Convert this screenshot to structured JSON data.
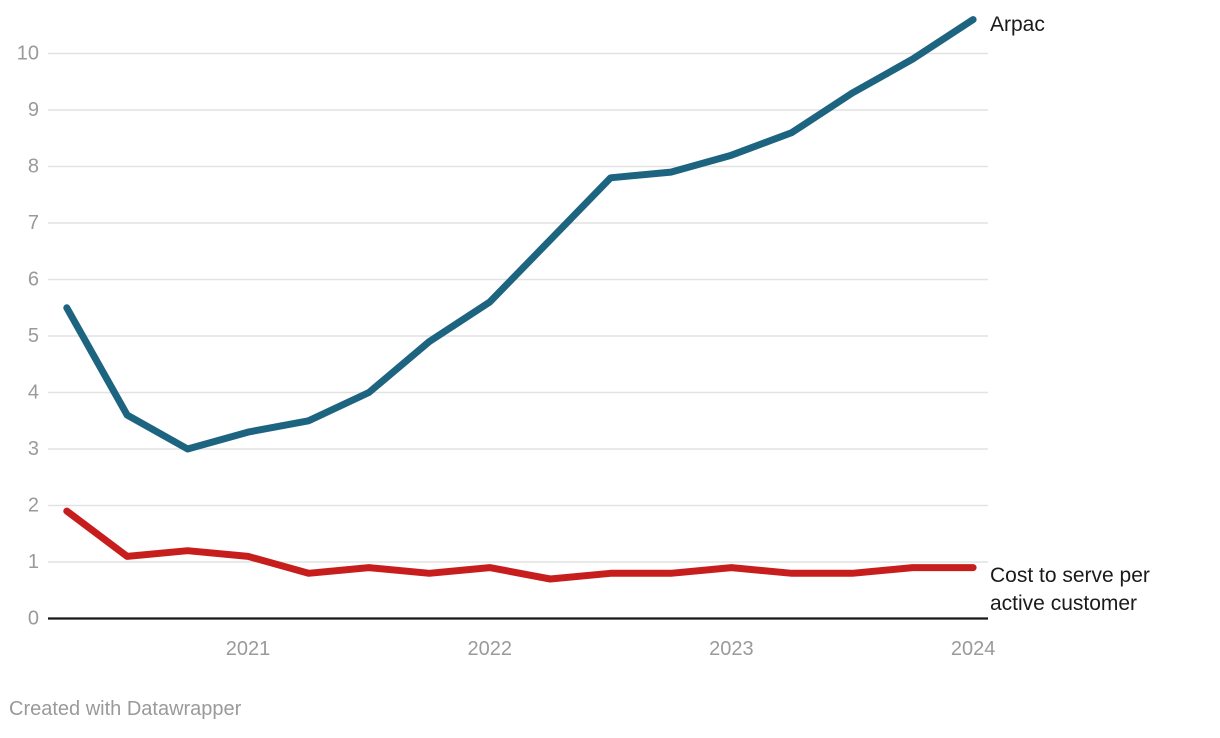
{
  "chart_data": {
    "type": "line",
    "x": [
      "2020-04",
      "2020-07",
      "2020-10",
      "2021-01",
      "2021-04",
      "2021-07",
      "2021-10",
      "2022-01",
      "2022-04",
      "2022-07",
      "2022-10",
      "2023-01",
      "2023-04",
      "2023-07",
      "2023-10",
      "2024-01"
    ],
    "series": [
      {
        "name": "Arpac",
        "color": "#1d6480",
        "values": [
          5.5,
          3.6,
          3.0,
          3.3,
          3.5,
          4.0,
          4.9,
          5.6,
          6.7,
          7.8,
          7.9,
          8.2,
          8.6,
          9.3,
          9.9,
          10.6
        ]
      },
      {
        "name": "Cost to serve per active customer",
        "color": "#c71e1d",
        "values": [
          1.9,
          1.1,
          1.2,
          1.1,
          0.8,
          0.9,
          0.8,
          0.9,
          0.7,
          0.8,
          0.8,
          0.9,
          0.8,
          0.8,
          0.9,
          0.9
        ]
      }
    ],
    "y_ticks": [
      0,
      1,
      2,
      3,
      4,
      5,
      6,
      7,
      8,
      9,
      10
    ],
    "x_tick_labels": [
      {
        "label": "2021",
        "index": 3
      },
      {
        "label": "2022",
        "index": 7
      },
      {
        "label": "2023",
        "index": 11
      },
      {
        "label": "2024",
        "index": 15
      }
    ],
    "ylim": [
      0,
      10.6
    ],
    "grid": "horizontal",
    "legend": "direct-labels-right"
  },
  "colors": {
    "background": "#ffffff",
    "gridline": "#e2e2e2",
    "axis": "#181818",
    "tick_label": "#9a9a9a",
    "series_label": "#1a1a1a"
  },
  "footer": {
    "attribution": "Created with Datawrapper"
  }
}
